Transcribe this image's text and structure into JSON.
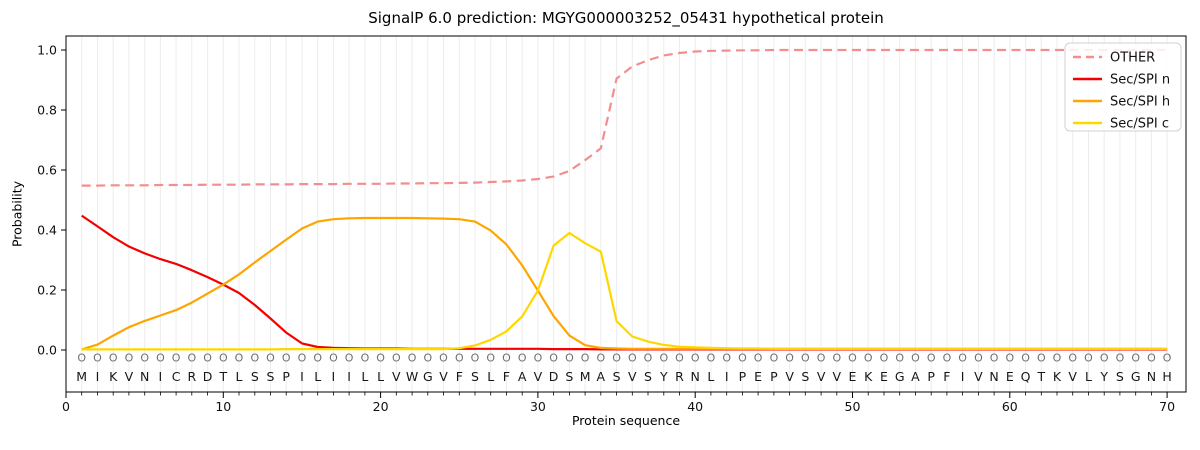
{
  "chart_data": {
    "type": "line",
    "title": "SignalP 6.0 prediction: MGYG000003252_05431 hypothetical protein",
    "xlabel": "Protein sequence",
    "ylabel": "Probability",
    "xlim": [
      0,
      71.2
    ],
    "ylim": [
      -0.14,
      1.05
    ],
    "xticks": [
      0,
      10,
      20,
      30,
      40,
      50,
      60,
      70
    ],
    "yticks": [
      0.0,
      0.2,
      0.4,
      0.6,
      0.8,
      1.0
    ],
    "grid": "vertical gridline at every residue position",
    "legend_position": "upper right",
    "positions": [
      1,
      2,
      3,
      4,
      5,
      6,
      7,
      8,
      9,
      10,
      11,
      12,
      13,
      14,
      15,
      16,
      17,
      18,
      19,
      20,
      21,
      22,
      23,
      24,
      25,
      26,
      27,
      28,
      29,
      30,
      31,
      32,
      33,
      34,
      35,
      36,
      37,
      38,
      39,
      40,
      41,
      42,
      43,
      44,
      45,
      46,
      47,
      48,
      49,
      50,
      51,
      52,
      53,
      54,
      55,
      56,
      57,
      58,
      59,
      60,
      61,
      62,
      63,
      64,
      65,
      66,
      67,
      68,
      69,
      70
    ],
    "sequence": "MIKVNICRDTLSSPILIILLVWGVFSLFAVDSMASVSYRNLIPEPVSVVEKEGAPFIVNEQTKVLYSGNH",
    "position_marker_row": "OOOOOOOOOOOOOOOOOOOOOOOOOOOOOOOOOOOOOOOOOOOOOOOOOOOOOOOOOOOOOOOOOOOOOO",
    "series": [
      {
        "name": "OTHER",
        "color": "#f28e8e",
        "style": "dashed",
        "values": [
          0.548,
          0.548,
          0.549,
          0.549,
          0.549,
          0.55,
          0.55,
          0.55,
          0.551,
          0.551,
          0.551,
          0.552,
          0.552,
          0.552,
          0.553,
          0.553,
          0.553,
          0.554,
          0.554,
          0.554,
          0.555,
          0.555,
          0.556,
          0.556,
          0.557,
          0.558,
          0.56,
          0.562,
          0.565,
          0.57,
          0.578,
          0.597,
          0.633,
          0.672,
          0.905,
          0.945,
          0.966,
          0.982,
          0.99,
          0.995,
          0.997,
          0.998,
          0.999,
          0.999,
          1.0,
          1.0,
          1.0,
          1.0,
          1.0,
          1.0,
          1.0,
          1.0,
          1.0,
          1.0,
          1.0,
          1.0,
          1.0,
          1.0,
          1.0,
          1.0,
          1.0,
          1.0,
          1.0,
          1.0,
          1.0,
          1.0,
          1.0,
          1.0,
          1.0,
          1.0
        ]
      },
      {
        "name": "Sec/SPI n",
        "color": "#f40000",
        "style": "solid",
        "values": [
          0.448,
          0.412,
          0.376,
          0.345,
          0.322,
          0.303,
          0.287,
          0.266,
          0.243,
          0.218,
          0.19,
          0.15,
          0.105,
          0.058,
          0.022,
          0.01,
          0.007,
          0.006,
          0.005,
          0.005,
          0.005,
          0.004,
          0.004,
          0.004,
          0.004,
          0.004,
          0.004,
          0.004,
          0.004,
          0.004,
          0.003,
          0.003,
          0.003,
          0.002,
          0.002,
          0.002,
          0.002,
          0.002,
          0.002,
          0.002,
          0.002,
          0.002,
          0.002,
          0.002,
          0.002,
          0.002,
          0.002,
          0.002,
          0.002,
          0.002,
          0.002,
          0.002,
          0.002,
          0.002,
          0.002,
          0.002,
          0.002,
          0.002,
          0.002,
          0.002,
          0.002,
          0.002,
          0.002,
          0.002,
          0.002,
          0.002,
          0.002,
          0.002,
          0.002,
          0.002
        ]
      },
      {
        "name": "Sec/SPI h",
        "color": "#ffa500",
        "style": "solid",
        "values": [
          0.002,
          0.018,
          0.048,
          0.076,
          0.097,
          0.115,
          0.133,
          0.158,
          0.188,
          0.218,
          0.252,
          0.292,
          0.33,
          0.368,
          0.405,
          0.428,
          0.436,
          0.439,
          0.44,
          0.44,
          0.44,
          0.44,
          0.439,
          0.438,
          0.436,
          0.428,
          0.398,
          0.352,
          0.282,
          0.198,
          0.113,
          0.048,
          0.016,
          0.007,
          0.005,
          0.004,
          0.004,
          0.004,
          0.004,
          0.004,
          0.004,
          0.004,
          0.004,
          0.004,
          0.004,
          0.004,
          0.004,
          0.004,
          0.004,
          0.004,
          0.004,
          0.004,
          0.004,
          0.004,
          0.004,
          0.004,
          0.004,
          0.004,
          0.004,
          0.004,
          0.004,
          0.004,
          0.004,
          0.004,
          0.004,
          0.004,
          0.004,
          0.004,
          0.004,
          0.004
        ]
      },
      {
        "name": "Sec/SPI c",
        "color": "#ffd700",
        "style": "solid",
        "values": [
          0.002,
          0.002,
          0.002,
          0.002,
          0.002,
          0.002,
          0.002,
          0.002,
          0.002,
          0.002,
          0.002,
          0.002,
          0.002,
          0.003,
          0.003,
          0.003,
          0.003,
          0.003,
          0.003,
          0.003,
          0.003,
          0.003,
          0.003,
          0.003,
          0.006,
          0.015,
          0.034,
          0.062,
          0.112,
          0.198,
          0.348,
          0.39,
          0.356,
          0.328,
          0.096,
          0.045,
          0.028,
          0.017,
          0.011,
          0.009,
          0.007,
          0.006,
          0.005,
          0.005,
          0.004,
          0.004,
          0.004,
          0.004,
          0.004,
          0.004,
          0.004,
          0.004,
          0.004,
          0.004,
          0.004,
          0.004,
          0.004,
          0.004,
          0.004,
          0.004,
          0.004,
          0.004,
          0.004,
          0.004,
          0.004,
          0.004,
          0.004,
          0.004,
          0.004,
          0.004
        ]
      }
    ],
    "colors": {
      "grid": "#ececec",
      "spine": "#000000",
      "tick_label": "#111111",
      "marker_row": "#6e6e6e",
      "sequence_letter": "#161616",
      "legend_border": "#d0d0d0"
    }
  }
}
